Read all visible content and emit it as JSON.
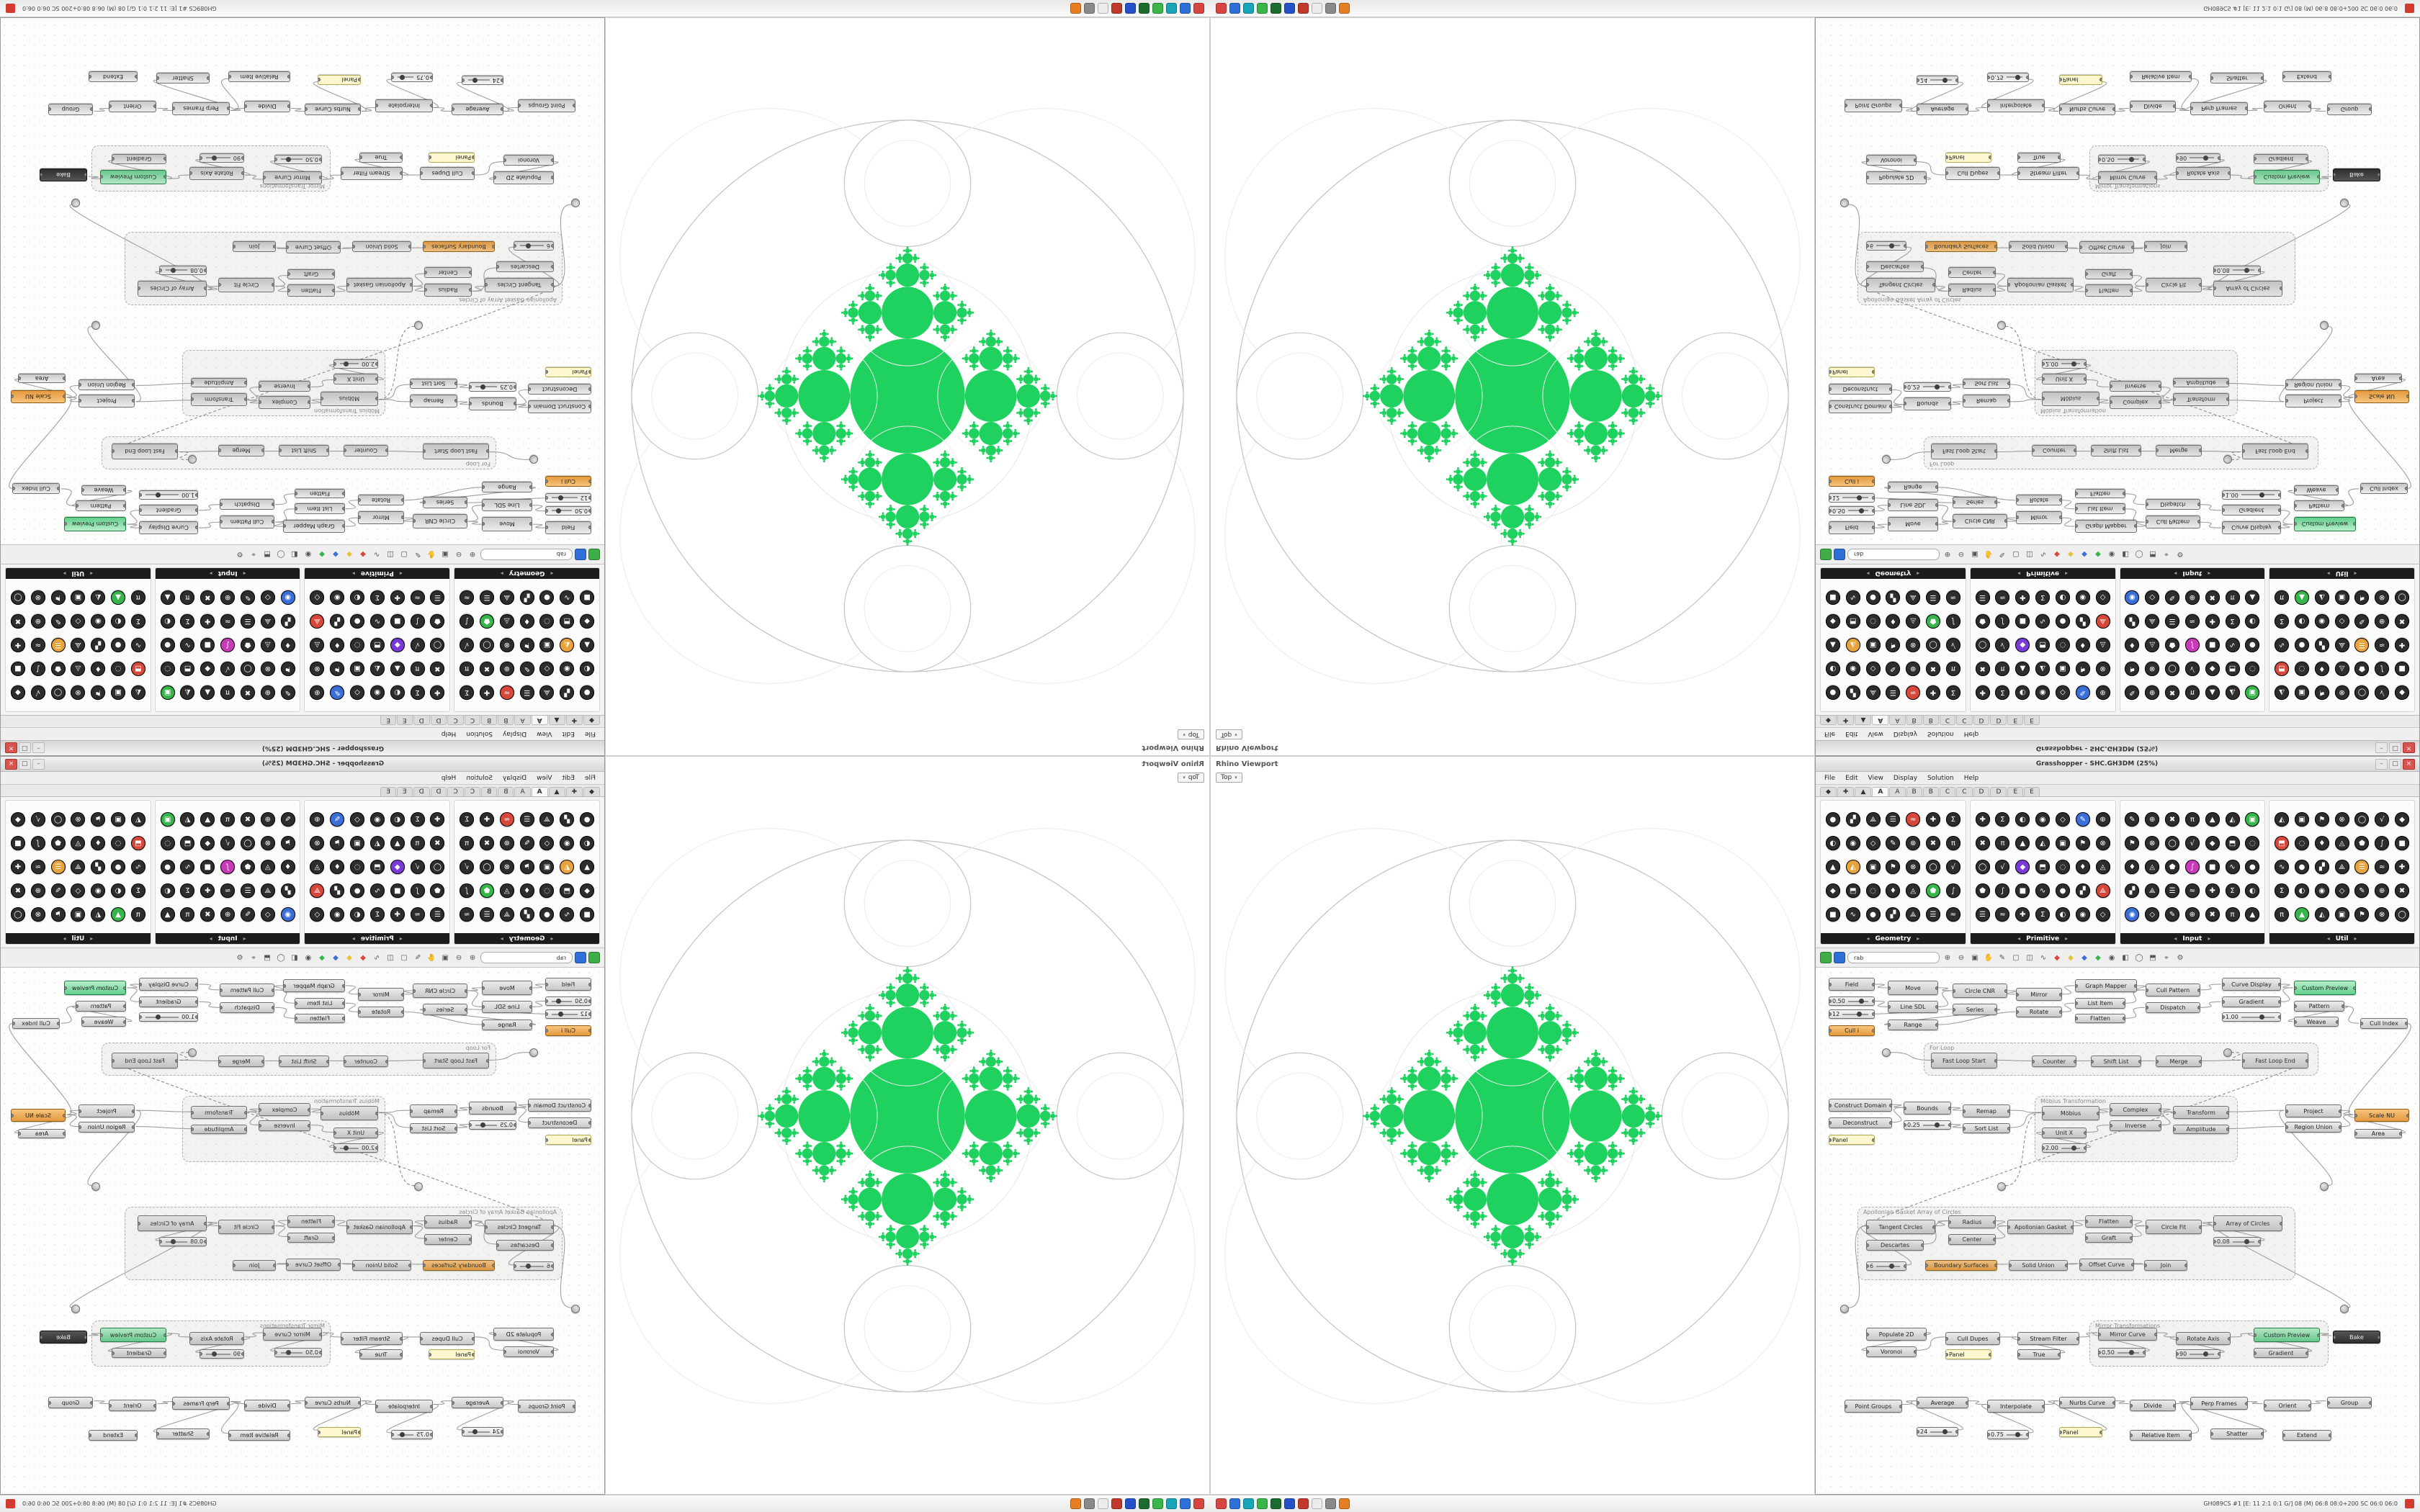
{
  "fractal": {
    "green": "#1fd15f",
    "outline": "#c6c6c6",
    "faint": "#ececec",
    "ratio": 0.45,
    "depth": 5
  },
  "viewport": {
    "title": "Rhino Viewport",
    "tab": "Top"
  },
  "status": {
    "icons": [
      "#d64541",
      "#2e6fd8",
      "#18a5b8",
      "#39b54a",
      "#1c6b2f",
      "#2450c8",
      "#c0392b",
      "#ececec",
      "#8a8a8a",
      "#e67e22"
    ],
    "right_text": "GH089CS #1  [E: 11 2:1 0:1 G/]  08 (M) 06:8 08:0+200 SC 06:0 06:0"
  },
  "gh": {
    "title": "Grasshopper - SHC.GH3DM (25%)",
    "win_buttons": [
      "–",
      "□",
      "×"
    ],
    "menu": [
      "File",
      "Edit",
      "View",
      "Display",
      "Solution",
      "Help"
    ],
    "tabs": {
      "items": [
        "◆",
        "✚",
        "▲",
        "A",
        "A",
        "B",
        "B",
        "C",
        "C",
        "D",
        "D",
        "E",
        "E"
      ],
      "active": 3
    },
    "ribbon": {
      "cols": 7,
      "rows": 5,
      "groups": [
        {
          "name": "Geometry"
        },
        {
          "name": "Primitive"
        },
        {
          "name": "Input"
        },
        {
          "name": "Util"
        }
      ],
      "palette": [
        "#3a6fd8",
        "#c93ab8",
        "#35b54a",
        "#e8a33d",
        "#d8483a",
        "#7a3ad8"
      ]
    },
    "toolbar": {
      "search": "rab",
      "left": [
        {
          "name": "open-file-icon",
          "color": "#3fae49"
        },
        {
          "name": "save-file-icon",
          "color": "#2f6fd8"
        }
      ],
      "icons": [
        {
          "n": "zoom-in-icon",
          "g": "⊕"
        },
        {
          "n": "zoom-out-icon",
          "g": "⊖"
        },
        {
          "n": "zoom-extents-icon",
          "g": "▣"
        },
        {
          "n": "pan-icon",
          "g": "✋"
        },
        {
          "n": "sketch-icon",
          "g": "✎"
        },
        {
          "n": "group-icon",
          "g": "▢"
        },
        {
          "n": "cluster-icon",
          "g": "◫"
        },
        {
          "n": "wire-display-icon",
          "g": "∿"
        },
        {
          "n": "preview-red-icon",
          "g": "◆",
          "c": "#d8483a"
        },
        {
          "n": "preview-yellow-icon",
          "g": "◆",
          "c": "#e8c23d"
        },
        {
          "n": "preview-blue-icon",
          "g": "◆",
          "c": "#3a6fd8"
        },
        {
          "n": "preview-green-icon",
          "g": "◆",
          "c": "#35b54a"
        },
        {
          "n": "preview-eye-icon",
          "g": "◉"
        },
        {
          "n": "shaded-icon",
          "g": "◧"
        },
        {
          "n": "wireframe-icon",
          "g": "◯"
        },
        {
          "n": "bake-icon",
          "g": "⬒"
        },
        {
          "n": "camera-icon",
          "g": "⌖"
        },
        {
          "n": "settings-icon",
          "g": "⚙"
        }
      ]
    },
    "canvas": {
      "groups": [
        [
          150,
          104,
          548,
          46,
          "For Loop"
        ],
        [
          304,
          178,
          282,
          92,
          "Möbius Transformation"
        ],
        [
          58,
          332,
          608,
          102,
          "Apollonian Gasket Array of Circles"
        ],
        [
          380,
          490,
          332,
          64,
          "Mirror Transformations"
        ]
      ],
      "nodes": [
        [
          18,
          14,
          64,
          18,
          "Field",
          "c"
        ],
        [
          18,
          40,
          64,
          13,
          "0.50",
          "s"
        ],
        [
          18,
          58,
          64,
          13,
          "12",
          "s"
        ],
        [
          100,
          18,
          70,
          20,
          "Move",
          "c"
        ],
        [
          100,
          46,
          70,
          17,
          "Line SDL",
          "c"
        ],
        [
          190,
          22,
          76,
          20,
          "Circle CNR",
          "c"
        ],
        [
          190,
          50,
          62,
          16,
          "Series",
          "c"
        ],
        [
          100,
          72,
          70,
          15,
          "Range",
          "c"
        ],
        [
          18,
          80,
          64,
          15,
          "Cull i",
          "a"
        ],
        [
          278,
          28,
          64,
          18,
          "Mirror",
          "c"
        ],
        [
          278,
          54,
          64,
          15,
          "Rotate",
          "c"
        ],
        [
          360,
          16,
          86,
          18,
          "Graph Mapper",
          "c"
        ],
        [
          360,
          42,
          70,
          15,
          "List Item",
          "c"
        ],
        [
          360,
          64,
          70,
          13,
          "Flatten",
          "c"
        ],
        [
          458,
          22,
          76,
          18,
          "Cull Pattern",
          "c"
        ],
        [
          458,
          48,
          76,
          15,
          "Dispatch",
          "c"
        ],
        [
          564,
          14,
          82,
          18,
          "Curve Display",
          "c"
        ],
        [
          564,
          40,
          82,
          15,
          "Gradient",
          "c"
        ],
        [
          564,
          62,
          82,
          13,
          "1.00",
          "s"
        ],
        [
          664,
          18,
          86,
          20,
          "Custom Preview",
          "g"
        ],
        [
          664,
          46,
          70,
          15,
          "Pattern",
          "c"
        ],
        [
          756,
          70,
          66,
          15,
          "Cull Index",
          "c"
        ],
        [
          664,
          68,
          62,
          14,
          "Weave",
          "c"
        ],
        [
          160,
          118,
          92,
          22,
          "Fast Loop Start",
          "c"
        ],
        [
          592,
          118,
          92,
          22,
          "Fast Loop End",
          "c"
        ],
        [
          300,
          122,
          62,
          16,
          "Counter",
          "c"
        ],
        [
          382,
          122,
          70,
          16,
          "Shift List",
          "c"
        ],
        [
          472,
          122,
          64,
          16,
          "Merge",
          "c"
        ],
        [
          18,
          182,
          88,
          18,
          "Construct Domain",
          "c"
        ],
        [
          18,
          208,
          88,
          15,
          "Deconstruct",
          "c"
        ],
        [
          122,
          186,
          66,
          18,
          "Bounds",
          "c"
        ],
        [
          122,
          212,
          66,
          13,
          "0.25",
          "s"
        ],
        [
          18,
          232,
          64,
          14,
          "Panel",
          "p"
        ],
        [
          204,
          190,
          66,
          18,
          "Remap",
          "c"
        ],
        [
          204,
          216,
          66,
          14,
          "Sort List",
          "c"
        ],
        [
          314,
          192,
          80,
          20,
          "Möbius",
          "c"
        ],
        [
          408,
          188,
          72,
          18,
          "Complex",
          "c"
        ],
        [
          408,
          212,
          72,
          15,
          "Inverse",
          "c"
        ],
        [
          496,
          192,
          78,
          18,
          "Transform",
          "c"
        ],
        [
          496,
          218,
          78,
          13,
          "Amplitude",
          "c"
        ],
        [
          314,
          222,
          62,
          15,
          "Unit X",
          "c"
        ],
        [
          314,
          244,
          62,
          13,
          "2.00",
          "s"
        ],
        [
          652,
          190,
          78,
          18,
          "Project",
          "c"
        ],
        [
          652,
          214,
          78,
          15,
          "Region Union",
          "c"
        ],
        [
          748,
          196,
          76,
          18,
          "Scale NU",
          "a"
        ],
        [
          748,
          224,
          66,
          13,
          "Area",
          "c"
        ],
        [
          70,
          350,
          96,
          20,
          "Tangent Circles",
          "c"
        ],
        [
          70,
          378,
          80,
          15,
          "Descartes",
          "c"
        ],
        [
          184,
          344,
          66,
          18,
          "Radius",
          "c"
        ],
        [
          184,
          370,
          66,
          15,
          "Center",
          "c"
        ],
        [
          266,
          350,
          92,
          20,
          "Apollonian Gasket",
          "c"
        ],
        [
          374,
          344,
          66,
          17,
          "Flatten",
          "c"
        ],
        [
          374,
          368,
          66,
          14,
          "Graft",
          "c"
        ],
        [
          458,
          350,
          78,
          20,
          "Circle Fit",
          "c"
        ],
        [
          552,
          344,
          96,
          22,
          "Array of Circles",
          "c"
        ],
        [
          552,
          374,
          66,
          13,
          "0.08",
          "s"
        ],
        [
          70,
          408,
          56,
          13,
          "6",
          "s"
        ],
        [
          152,
          406,
          100,
          15,
          "Boundary Surfaces",
          "a"
        ],
        [
          268,
          406,
          82,
          15,
          "Solid Union",
          "c"
        ],
        [
          366,
          404,
          76,
          17,
          "Offset Curve",
          "c"
        ],
        [
          456,
          406,
          60,
          15,
          "Join",
          "c"
        ],
        [
          70,
          500,
          84,
          18,
          "Populate 2D",
          "c"
        ],
        [
          70,
          526,
          70,
          15,
          "Voronoi",
          "c"
        ],
        [
          180,
          506,
          76,
          18,
          "Cull Dupes",
          "c"
        ],
        [
          180,
          530,
          64,
          14,
          "Panel",
          "p"
        ],
        [
          280,
          506,
          86,
          18,
          "Stream Filter",
          "c"
        ],
        [
          280,
          530,
          60,
          14,
          "True",
          "c"
        ],
        [
          392,
          500,
          82,
          18,
          "Mirror Curve",
          "c"
        ],
        [
          392,
          528,
          66,
          13,
          "0.50",
          "s"
        ],
        [
          500,
          506,
          76,
          18,
          "Rotate Axis",
          "c"
        ],
        [
          500,
          530,
          62,
          13,
          "90",
          "s"
        ],
        [
          608,
          500,
          92,
          20,
          "Custom Preview",
          "g"
        ],
        [
          608,
          528,
          76,
          14,
          "Gradient",
          "c"
        ],
        [
          718,
          504,
          66,
          18,
          "Bake",
          "d"
        ],
        [
          40,
          600,
          80,
          18,
          "Point Groups",
          "c"
        ],
        [
          140,
          596,
          72,
          16,
          "Average",
          "c"
        ],
        [
          238,
          600,
          80,
          18,
          "Interpolate",
          "c"
        ],
        [
          338,
          596,
          78,
          16,
          "Nurbs Curve",
          "c"
        ],
        [
          436,
          600,
          64,
          16,
          "Divide",
          "c"
        ],
        [
          520,
          596,
          80,
          18,
          "Perp Frames",
          "c"
        ],
        [
          622,
          600,
          66,
          16,
          "Orient",
          "c"
        ],
        [
          710,
          596,
          62,
          16,
          "Group",
          "c"
        ],
        [
          140,
          638,
          58,
          13,
          "24",
          "s"
        ],
        [
          238,
          642,
          58,
          13,
          "0.75",
          "s"
        ],
        [
          338,
          638,
          60,
          14,
          "Panel",
          "p"
        ],
        [
          436,
          642,
          86,
          15,
          "Relative Item",
          "c"
        ],
        [
          548,
          640,
          74,
          15,
          "Shatter",
          "c"
        ],
        [
          648,
          642,
          68,
          15,
          "Extend",
          "c"
        ],
        [
          92,
          112,
          12,
          12,
          "",
          "r"
        ],
        [
          566,
          112,
          12,
          12,
          "",
          "r"
        ],
        [
          252,
          298,
          12,
          12,
          "",
          "r"
        ],
        [
          700,
          298,
          12,
          12,
          "",
          "r"
        ],
        [
          34,
          468,
          12,
          12,
          "",
          "r"
        ],
        [
          728,
          468,
          12,
          12,
          "",
          "r"
        ]
      ],
      "wires": [
        [
          0,
          3
        ],
        [
          1,
          4
        ],
        [
          2,
          6
        ],
        [
          3,
          5
        ],
        [
          4,
          5
        ],
        [
          5,
          9
        ],
        [
          6,
          7
        ],
        [
          7,
          10
        ],
        [
          9,
          11
        ],
        [
          10,
          12
        ],
        [
          11,
          14
        ],
        [
          12,
          14
        ],
        [
          13,
          15
        ],
        [
          14,
          16
        ],
        [
          15,
          17
        ],
        [
          16,
          19
        ],
        [
          17,
          19
        ],
        [
          20,
          21
        ],
        [
          20,
          22
        ],
        [
          23,
          25
        ],
        [
          25,
          26
        ],
        [
          26,
          27
        ],
        [
          27,
          24
        ],
        [
          88,
          23
        ],
        [
          89,
          24,
          1
        ],
        [
          28,
          30
        ],
        [
          29,
          30
        ],
        [
          30,
          33
        ],
        [
          31,
          34
        ],
        [
          33,
          35
        ],
        [
          34,
          35
        ],
        [
          35,
          36
        ],
        [
          36,
          38
        ],
        [
          37,
          38
        ],
        [
          38,
          42
        ],
        [
          39,
          43
        ],
        [
          40,
          37
        ],
        [
          41,
          40
        ],
        [
          42,
          44
        ],
        [
          43,
          44
        ],
        [
          45,
          44
        ],
        [
          90,
          35,
          1
        ],
        [
          91,
          42
        ],
        [
          46,
          48
        ],
        [
          47,
          48
        ],
        [
          48,
          50
        ],
        [
          49,
          50
        ],
        [
          50,
          51
        ],
        [
          51,
          53
        ],
        [
          52,
          53
        ],
        [
          53,
          54
        ],
        [
          55,
          54
        ],
        [
          56,
          46
        ],
        [
          57,
          58
        ],
        [
          58,
          59
        ],
        [
          59,
          60
        ],
        [
          92,
          46
        ],
        [
          93,
          54
        ],
        [
          24,
          46,
          1
        ],
        [
          61,
          62
        ],
        [
          62,
          63
        ],
        [
          63,
          65
        ],
        [
          66,
          65
        ],
        [
          65,
          67
        ],
        [
          68,
          67
        ],
        [
          67,
          69
        ],
        [
          70,
          69
        ],
        [
          69,
          71
        ],
        [
          72,
          71
        ],
        [
          71,
          73
        ],
        [
          74,
          75
        ],
        [
          82,
          75
        ],
        [
          75,
          76
        ],
        [
          83,
          76
        ],
        [
          76,
          77
        ],
        [
          84,
          77
        ],
        [
          77,
          78
        ],
        [
          78,
          79
        ],
        [
          85,
          79
        ],
        [
          86,
          79
        ],
        [
          79,
          80
        ],
        [
          80,
          81
        ],
        [
          21,
          44
        ]
      ]
    }
  }
}
